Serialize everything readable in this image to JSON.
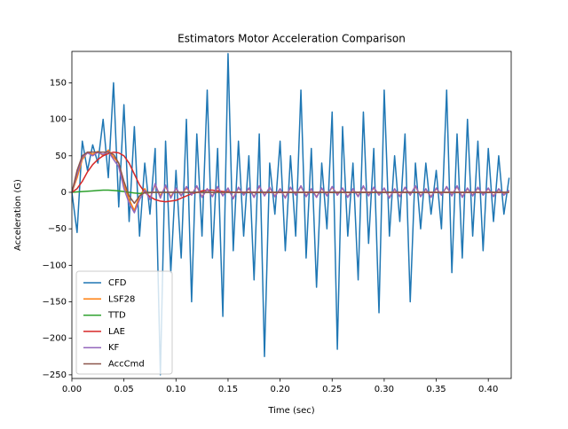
{
  "chart_data": {
    "type": "line",
    "title": "Estimators Motor Acceleration Comparison",
    "x_label": "Time (sec)",
    "y_label": "Acceleration (G)",
    "xlim": [
      0,
      0.422
    ],
    "ylim": [
      -255,
      193
    ],
    "xticks": [
      {
        "value": 0,
        "label": "0.00"
      },
      {
        "value": 0.05,
        "label": "0.05"
      },
      {
        "value": 0.1,
        "label": "0.10"
      },
      {
        "value": 0.15,
        "label": "0.15"
      },
      {
        "value": 0.2,
        "label": "0.20"
      },
      {
        "value": 0.25,
        "label": "0.25"
      },
      {
        "value": 0.3,
        "label": "0.30"
      },
      {
        "value": 0.35,
        "label": "0.35"
      },
      {
        "value": 0.4,
        "label": "0.40"
      }
    ],
    "yticks": [
      {
        "value": -250,
        "label": "−250"
      },
      {
        "value": -200,
        "label": "−200"
      },
      {
        "value": -150,
        "label": "−150"
      },
      {
        "value": -100,
        "label": "−100"
      },
      {
        "value": -50,
        "label": "−50"
      },
      0,
      50,
      100,
      150
    ],
    "legend": "lower left",
    "x": [
      0,
      0.005,
      0.01,
      0.015,
      0.02,
      0.025,
      0.03,
      0.035,
      0.04,
      0.045,
      0.05,
      0.055,
      0.06,
      0.065,
      0.07,
      0.075,
      0.08,
      0.085,
      0.09,
      0.095,
      0.1,
      0.105,
      0.11,
      0.115,
      0.12,
      0.125,
      0.13,
      0.135,
      0.14,
      0.145,
      0.15,
      0.155,
      0.16,
      0.165,
      0.17,
      0.175,
      0.18,
      0.185,
      0.19,
      0.195,
      0.2,
      0.205,
      0.21,
      0.215,
      0.22,
      0.225,
      0.23,
      0.235,
      0.24,
      0.245,
      0.25,
      0.255,
      0.26,
      0.265,
      0.27,
      0.275,
      0.28,
      0.285,
      0.29,
      0.295,
      0.3,
      0.305,
      0.31,
      0.315,
      0.32,
      0.325,
      0.33,
      0.335,
      0.34,
      0.345,
      0.35,
      0.355,
      0.36,
      0.365,
      0.37,
      0.375,
      0.38,
      0.385,
      0.39,
      0.395,
      0.4,
      0.405,
      0.41,
      0.415,
      0.42
    ],
    "series": [
      {
        "name": "CFD",
        "color": "#1f77b4",
        "values": [
          0,
          -55,
          70,
          30,
          65,
          40,
          100,
          20,
          150,
          -20,
          120,
          -40,
          90,
          -60,
          40,
          -30,
          60,
          -250,
          70,
          -110,
          30,
          -90,
          100,
          -150,
          80,
          -60,
          140,
          -90,
          60,
          -170,
          190,
          -80,
          70,
          -60,
          50,
          -120,
          80,
          -225,
          40,
          -30,
          70,
          -80,
          50,
          -60,
          140,
          -90,
          60,
          -130,
          40,
          -50,
          110,
          -215,
          90,
          -60,
          40,
          -120,
          110,
          -70,
          60,
          -165,
          140,
          -60,
          50,
          -40,
          80,
          -150,
          40,
          -50,
          40,
          -30,
          30,
          -50,
          140,
          -110,
          80,
          -90,
          100,
          -60,
          70,
          -80,
          60,
          -40,
          50,
          -30,
          20
        ]
      },
      {
        "name": "LSF28",
        "color": "#ff7f0e",
        "values": [
          0,
          20,
          45,
          55,
          52,
          56,
          50,
          58,
          48,
          40,
          10,
          -10,
          -25,
          -5,
          5,
          -8,
          10,
          -5,
          8,
          -6,
          5,
          -4,
          6,
          -3,
          8,
          -6,
          4,
          -5,
          7,
          -4,
          5,
          -8,
          6,
          -3,
          5,
          -6,
          8,
          -4,
          6,
          -5,
          4,
          -7,
          6,
          -3,
          8,
          -5,
          4,
          -6,
          5,
          -4,
          7,
          -3,
          5,
          -6,
          4,
          -5,
          8,
          -4,
          6,
          -3,
          5,
          -7,
          4,
          -5,
          6,
          -3,
          8,
          -5,
          4,
          -6,
          5,
          -3,
          7,
          -4,
          8,
          -6,
          5,
          -4,
          6,
          -3,
          5,
          -5,
          4,
          -3,
          2
        ]
      },
      {
        "name": "TTD",
        "color": "#2ca02c",
        "values": [
          0,
          0.5,
          1,
          1.5,
          2,
          2.5,
          3,
          3,
          2.5,
          2,
          1,
          0,
          -1,
          -1.5,
          -1,
          -0.5,
          0,
          0,
          0,
          0,
          0,
          0,
          0,
          0,
          0,
          0,
          0,
          0,
          0,
          0,
          0,
          0,
          0,
          0,
          0,
          0,
          0,
          0,
          0,
          0,
          0,
          0,
          0,
          0,
          0,
          0,
          0,
          0,
          0,
          0,
          0,
          0,
          0,
          0,
          0,
          0,
          0,
          0,
          0,
          0,
          0,
          0,
          0,
          0,
          0,
          0,
          0,
          0,
          0,
          0,
          0,
          0,
          0,
          0,
          0,
          0,
          0,
          0,
          0,
          0,
          0,
          0,
          0,
          0,
          0
        ]
      },
      {
        "name": "LAE",
        "color": "#d62728",
        "values": [
          0,
          5,
          15,
          28,
          38,
          45,
          50,
          53,
          55,
          54,
          50,
          40,
          25,
          10,
          0,
          -6,
          -10,
          -12,
          -13,
          -12,
          -11,
          -8,
          -5,
          -2,
          0,
          2,
          3,
          3,
          2,
          1,
          1,
          0,
          0,
          0,
          0,
          0,
          0,
          0,
          0,
          0,
          0,
          0,
          0,
          0,
          0,
          0,
          0,
          0,
          0,
          0,
          0,
          0,
          0,
          0,
          0,
          0,
          0,
          0,
          0,
          0,
          0,
          0,
          0,
          0,
          0,
          0,
          0,
          0,
          0,
          0,
          0,
          0,
          0,
          0,
          0,
          0,
          0,
          0,
          0,
          0,
          0,
          0,
          0,
          0,
          0
        ]
      },
      {
        "name": "KF",
        "color": "#9467bd",
        "values": [
          0,
          25,
          48,
          54,
          50,
          55,
          52,
          56,
          45,
          35,
          5,
          -15,
          -28,
          -10,
          3,
          -10,
          12,
          -8,
          10,
          -8,
          6,
          -5,
          8,
          -4,
          9,
          -7,
          5,
          -6,
          8,
          -5,
          6,
          -9,
          7,
          -4,
          6,
          -7,
          9,
          -5,
          7,
          -6,
          5,
          -8,
          7,
          -4,
          9,
          -6,
          5,
          -7,
          6,
          -5,
          8,
          -4,
          6,
          -7,
          5,
          -6,
          9,
          -5,
          7,
          -4,
          6,
          -8,
          5,
          -6,
          7,
          -4,
          9,
          -6,
          5,
          -7,
          6,
          -4,
          8,
          -5,
          9,
          -7,
          6,
          -5,
          7,
          -4,
          6,
          -6,
          5,
          -4,
          3
        ]
      },
      {
        "name": "AccCmd",
        "color": "#8c564b",
        "values": [
          0,
          30,
          50,
          55,
          55,
          55,
          55,
          55,
          52,
          40,
          15,
          -5,
          -15,
          -5,
          0,
          0,
          0,
          0,
          0,
          0,
          0,
          0,
          0,
          0,
          0,
          0,
          0,
          0,
          0,
          0,
          0,
          0,
          0,
          0,
          0,
          0,
          0,
          0,
          0,
          0,
          0,
          0,
          0,
          0,
          0,
          0,
          0,
          0,
          0,
          0,
          0,
          0,
          0,
          0,
          0,
          0,
          0,
          0,
          0,
          0,
          0,
          0,
          0,
          0,
          0,
          0,
          0,
          0,
          0,
          0,
          0,
          0,
          0,
          0,
          0,
          0,
          0,
          0,
          0,
          0,
          0,
          0,
          0,
          0,
          0
        ]
      }
    ]
  }
}
